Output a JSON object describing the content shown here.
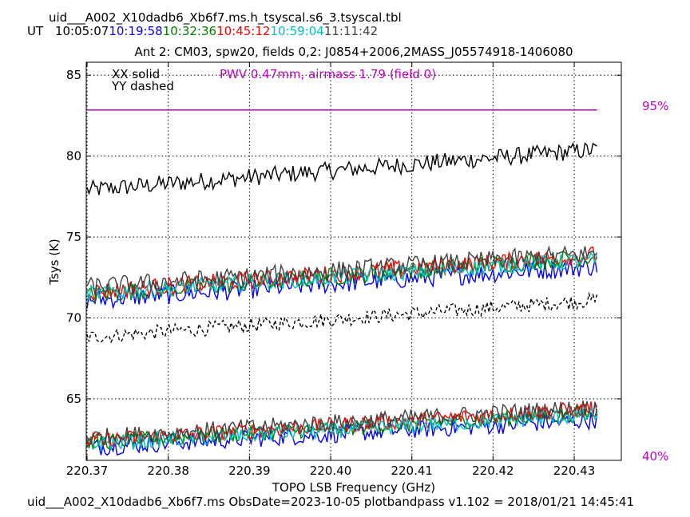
{
  "header": {
    "filename": "uid___A002_X10dadb6_Xb6f7.ms.h_tsyscal.s6_3.tsyscal.tbl",
    "ut_label": "UT",
    "times": [
      {
        "text": "10:05:07",
        "color": "#000000"
      },
      {
        "text": "10:19:58",
        "color": "#0000ff"
      },
      {
        "text": "10:32:36",
        "color": "#008000"
      },
      {
        "text": "10:45:12",
        "color": "#ff0000"
      },
      {
        "text": "10:59:04",
        "color": "#00bfbf"
      },
      {
        "text": "11:11:42",
        "color": "#404040"
      }
    ]
  },
  "footer": "uid___A002_X10dadb6_Xb6f7.ms  ObsDate=2023-10-05   plotbandpass v1.102 = 2018/01/21 14:45:41",
  "chart_data": {
    "type": "line",
    "title": "Ant 2: CM03,  spw20,  fields 0,2: J0854+2006,2MASS_J05574918-1406080",
    "xlabel": "TOPO LSB Frequency (GHz)",
    "ylabel": "Tsys (K)",
    "xlim": [
      220.3699,
      220.4358
    ],
    "ylim": [
      61.2,
      85.8
    ],
    "xticks": [
      220.37,
      220.38,
      220.39,
      220.4,
      220.41,
      220.42,
      220.43
    ],
    "xtick_labels": [
      "220.37",
      "220.38",
      "220.39",
      "220.40",
      "220.41",
      "220.42",
      "220.43"
    ],
    "yticks": [
      65,
      70,
      75,
      80,
      85
    ],
    "ytick_labels": [
      "65",
      "70",
      "75",
      "80",
      "85"
    ],
    "grid": true,
    "legend": {
      "solid": "XX solid",
      "dashed": "YY dashed",
      "placement": "top-left"
    },
    "pwv_annotation": {
      "text": "PWV 0.47mm, airmass 1.79 (field 0)",
      "color": "#c000c0"
    },
    "atm_labels": {
      "top": "95%",
      "bottom": "40%",
      "color": "#c000c0"
    },
    "atm_line": {
      "y": 82.85,
      "x_start": 220.37,
      "x_end": 220.4328,
      "color": "#c000c0"
    },
    "x_start": 220.37,
    "x_end": 220.4328,
    "series": [
      {
        "name": "10:05:07 XX",
        "color": "#000000",
        "style": "solid",
        "start": 77.9,
        "end": 80.4,
        "noise": 0.55
      },
      {
        "name": "10:05:07 YY",
        "color": "#000000",
        "style": "dashed",
        "start": 68.8,
        "end": 71.1,
        "noise": 0.45
      },
      {
        "name": "10:19:58 XX",
        "color": "#0000ff",
        "style": "solid",
        "start": 71.1,
        "end": 73.2,
        "noise": 0.6
      },
      {
        "name": "10:19:58 YY",
        "color": "#0000ff",
        "style": "solid",
        "start": 62.0,
        "end": 63.7,
        "noise": 0.55
      },
      {
        "name": "10:32:36 XX",
        "color": "#008000",
        "style": "solid",
        "start": 71.4,
        "end": 73.8,
        "noise": 0.55
      },
      {
        "name": "10:32:36 YY",
        "color": "#008000",
        "style": "solid",
        "start": 62.3,
        "end": 64.1,
        "noise": 0.5
      },
      {
        "name": "10:45:12 XX",
        "color": "#ff0000",
        "style": "solid",
        "start": 71.6,
        "end": 73.9,
        "noise": 0.55
      },
      {
        "name": "10:45:12 YY",
        "color": "#ff0000",
        "style": "solid",
        "start": 62.4,
        "end": 64.4,
        "noise": 0.5
      },
      {
        "name": "10:59:04 XX",
        "color": "#00bfbf",
        "style": "solid",
        "start": 71.5,
        "end": 73.6,
        "noise": 0.5
      },
      {
        "name": "10:59:04 YY",
        "color": "#00bfbf",
        "style": "solid",
        "start": 62.2,
        "end": 64.0,
        "noise": 0.5
      },
      {
        "name": "11:11:42 XX",
        "color": "#404040",
        "style": "solid",
        "start": 71.9,
        "end": 74.0,
        "noise": 0.6
      },
      {
        "name": "11:11:42 YY",
        "color": "#404040",
        "style": "solid",
        "start": 62.6,
        "end": 64.5,
        "noise": 0.55
      }
    ]
  }
}
